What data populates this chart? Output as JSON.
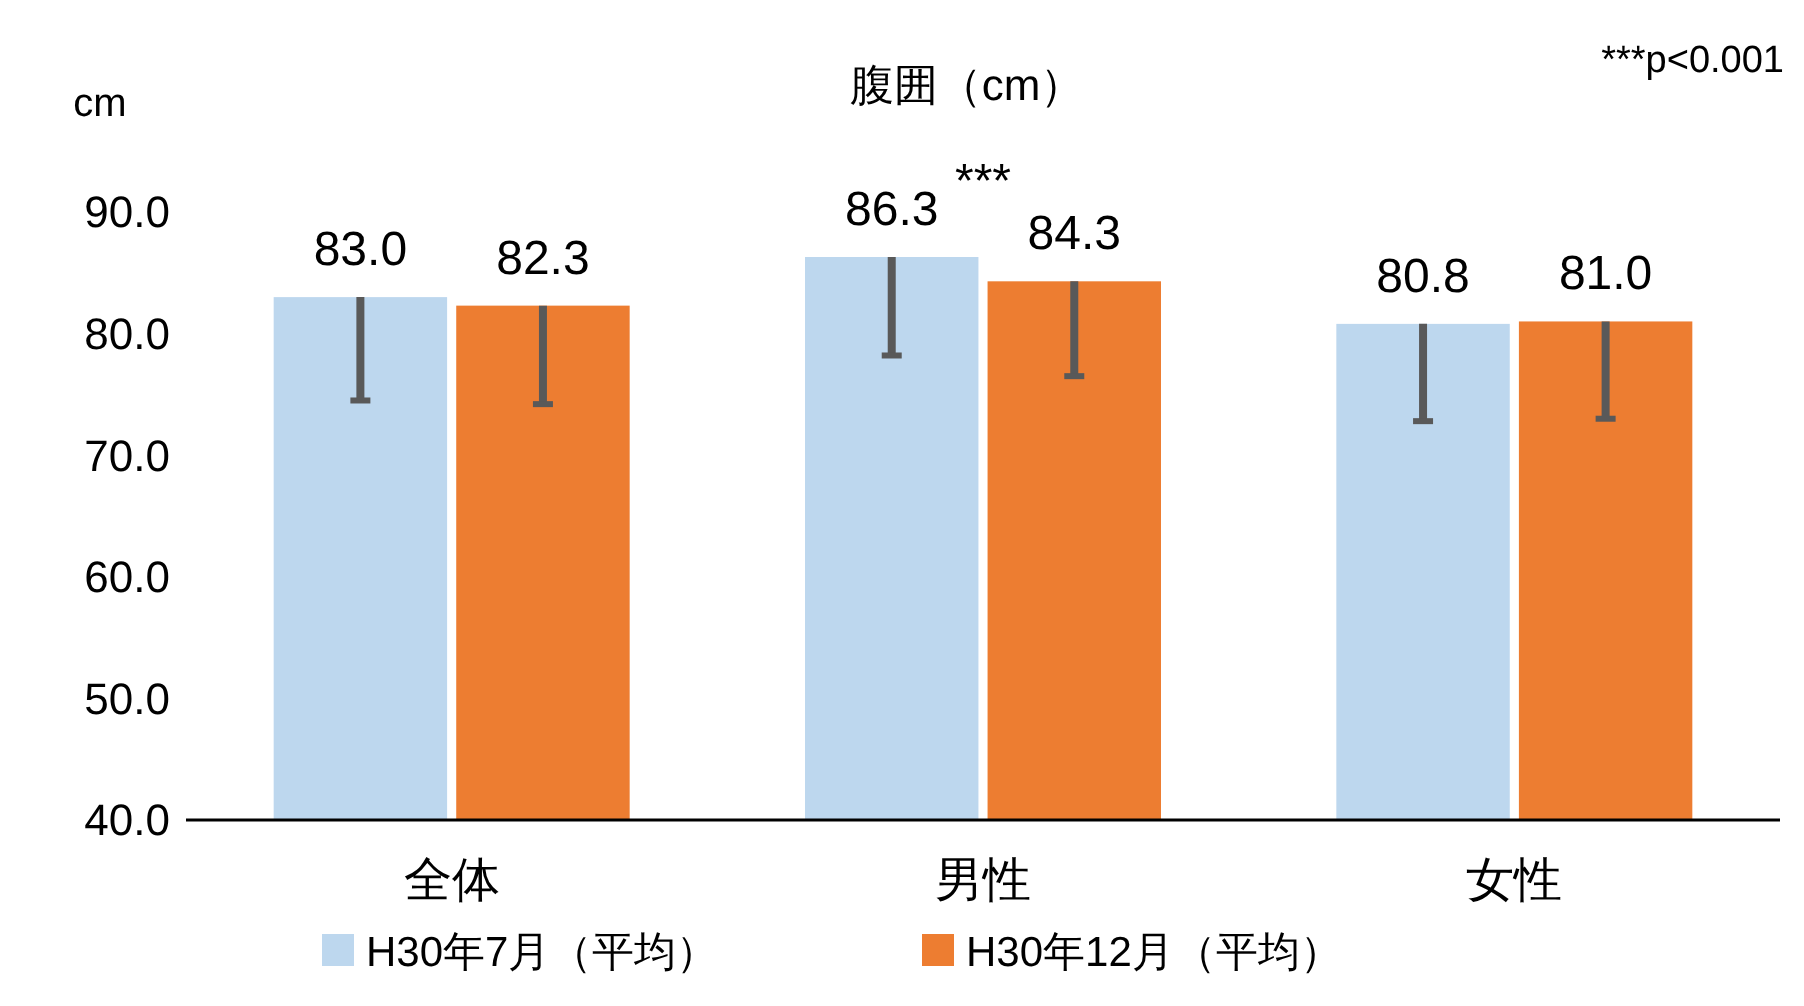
{
  "chart_data": {
    "type": "bar",
    "title": "腹囲（cm）",
    "ylabel": "cm",
    "categories": [
      "全体",
      "男性",
      "女性"
    ],
    "series": [
      {
        "name": "H30年7月（平均）",
        "color": "#bdd7ee",
        "values": [
          83.0,
          86.3,
          80.8
        ],
        "value_labels": [
          "83.0",
          "86.3",
          "80.8"
        ],
        "errors": [
          [
            74.5,
            83.0
          ],
          [
            78.2,
            86.3
          ],
          [
            72.8,
            80.8
          ]
        ]
      },
      {
        "name": "H30年12月（平均）",
        "color": "#ed7d31",
        "values": [
          82.3,
          84.3,
          81.0
        ],
        "value_labels": [
          "82.3",
          "84.3",
          "81.0"
        ],
        "errors": [
          [
            74.2,
            82.3
          ],
          [
            76.5,
            84.3
          ],
          [
            73.0,
            81.0
          ]
        ]
      }
    ],
    "ylim": [
      40,
      90
    ],
    "yticks": [
      {
        "value": 40,
        "label": "40.0"
      },
      {
        "value": 50,
        "label": "50.0"
      },
      {
        "value": 60,
        "label": "60.0"
      },
      {
        "value": 70,
        "label": "70.0"
      },
      {
        "value": 80,
        "label": "80.0"
      },
      {
        "value": 90,
        "label": "90.0"
      }
    ],
    "grid": false,
    "legend": "bottom",
    "annotations": [
      "***p<0.001",
      {
        "text": "***",
        "x": "男性",
        "y": 86.3
      }
    ]
  }
}
